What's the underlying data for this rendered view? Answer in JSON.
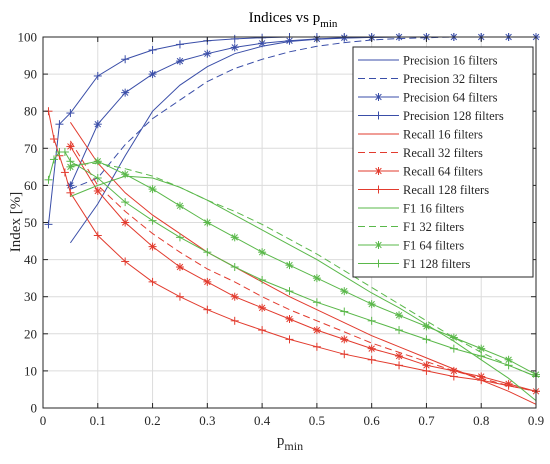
{
  "chart_data": {
    "type": "line",
    "title": "Indices vs p",
    "title_subscript": "min",
    "xlabel": "p",
    "xlabel_subscript": "min",
    "ylabel": "Index [%]",
    "xlim": [
      0,
      0.9
    ],
    "ylim": [
      0,
      100
    ],
    "xticks": [
      "0",
      "0.1",
      "0.2",
      "0.3",
      "0.4",
      "0.5",
      "0.6",
      "0.7",
      "0.8",
      "0.9"
    ],
    "yticks": [
      "0",
      "10",
      "20",
      "30",
      "40",
      "50",
      "60",
      "70",
      "80",
      "90",
      "100"
    ],
    "grid": true,
    "legend_position": "top-right",
    "colors": {
      "precision": "#3a4ea8",
      "recall": "#e23b2e",
      "f1": "#5ab84a"
    },
    "series": [
      {
        "name": "Precision 16 filters",
        "group": "precision",
        "style": "solid",
        "marker": "none",
        "x": [
          0.05,
          0.1,
          0.15,
          0.2,
          0.25,
          0.3,
          0.35,
          0.4,
          0.45,
          0.5,
          0.55,
          0.6,
          0.65,
          0.7,
          0.75,
          0.8,
          0.85,
          0.9
        ],
        "y": [
          44.5,
          55,
          68,
          80,
          87,
          92,
          95.5,
          97.5,
          98.8,
          99.4,
          99.7,
          99.9,
          100,
          100,
          100,
          100,
          100,
          100
        ]
      },
      {
        "name": "Precision 32 filters",
        "group": "precision",
        "style": "dashed",
        "marker": "none",
        "x": [
          0.05,
          0.1,
          0.15,
          0.2,
          0.25,
          0.3,
          0.35,
          0.4,
          0.45,
          0.5,
          0.55,
          0.6,
          0.65,
          0.7,
          0.75,
          0.8,
          0.85,
          0.9
        ],
        "y": [
          59,
          62,
          71,
          78,
          83,
          88,
          91.5,
          94,
          96,
          97.5,
          98.5,
          99.2,
          99.6,
          99.8,
          100,
          100,
          100,
          100
        ]
      },
      {
        "name": "Precision 64 filters",
        "group": "precision",
        "style": "solid",
        "marker": "asterisk",
        "x": [
          0.05,
          0.1,
          0.15,
          0.2,
          0.25,
          0.3,
          0.35,
          0.4,
          0.45,
          0.5,
          0.55,
          0.6,
          0.65,
          0.7,
          0.75,
          0.8,
          0.85,
          0.9
        ],
        "y": [
          60,
          76.5,
          85,
          90,
          93.5,
          95.5,
          97.2,
          98.3,
          99,
          99.5,
          99.8,
          99.9,
          100,
          100,
          100,
          100,
          100,
          100
        ]
      },
      {
        "name": "Precision 128 filters",
        "group": "precision",
        "style": "solid",
        "marker": "plus",
        "x": [
          0.01,
          0.03,
          0.05,
          0.1,
          0.15,
          0.2,
          0.25,
          0.3,
          0.35,
          0.4,
          0.45,
          0.5,
          0.55,
          0.6,
          0.65,
          0.7,
          0.75,
          0.8,
          0.85,
          0.9
        ],
        "y": [
          49.5,
          76.5,
          79.5,
          89.5,
          94,
          96.5,
          98,
          99,
          99.5,
          99.8,
          100,
          100,
          100,
          100,
          100,
          100,
          100,
          100,
          100,
          100
        ]
      },
      {
        "name": "Recall 16 filters",
        "group": "recall",
        "style": "solid",
        "marker": "none",
        "x": [
          0.05,
          0.1,
          0.15,
          0.2,
          0.25,
          0.3,
          0.35,
          0.4,
          0.45,
          0.5,
          0.55,
          0.6,
          0.65,
          0.7,
          0.75,
          0.8,
          0.85,
          0.9
        ],
        "y": [
          77,
          66,
          58,
          52,
          47,
          42,
          38,
          34,
          30,
          26.5,
          23,
          19.5,
          16.5,
          13.5,
          10.5,
          7.5,
          4.5,
          1
        ]
      },
      {
        "name": "Recall 32 filters",
        "group": "recall",
        "style": "dashed",
        "marker": "none",
        "x": [
          0.05,
          0.1,
          0.15,
          0.2,
          0.25,
          0.3,
          0.35,
          0.4,
          0.45,
          0.5,
          0.55,
          0.6,
          0.65,
          0.7,
          0.75,
          0.8,
          0.85,
          0.9
        ],
        "y": [
          72,
          60,
          53,
          47,
          42,
          37.5,
          34,
          30,
          26.5,
          23.5,
          20.5,
          17.5,
          15,
          12.5,
          10,
          8,
          6,
          4.5
        ]
      },
      {
        "name": "Recall 64 filters",
        "group": "recall",
        "style": "solid",
        "marker": "asterisk",
        "x": [
          0.05,
          0.1,
          0.15,
          0.2,
          0.25,
          0.3,
          0.35,
          0.4,
          0.45,
          0.5,
          0.55,
          0.6,
          0.65,
          0.7,
          0.75,
          0.8,
          0.85,
          0.9
        ],
        "y": [
          70.5,
          58.5,
          50,
          43.5,
          38,
          34,
          30,
          27,
          24,
          21,
          18.5,
          16,
          14,
          11.5,
          10,
          8.5,
          6.5,
          4.5
        ]
      },
      {
        "name": "Recall 128 filters",
        "group": "recall",
        "style": "solid",
        "marker": "plus",
        "x": [
          0.01,
          0.02,
          0.03,
          0.04,
          0.05,
          0.1,
          0.15,
          0.2,
          0.25,
          0.3,
          0.35,
          0.4,
          0.45,
          0.5,
          0.55,
          0.6,
          0.65,
          0.7,
          0.75,
          0.8,
          0.85,
          0.9
        ],
        "y": [
          80,
          72.5,
          68,
          63.5,
          58,
          46.5,
          39.5,
          34,
          30,
          26.5,
          23.5,
          21,
          18.5,
          16.5,
          14.5,
          13,
          11.5,
          10,
          8.5,
          7.5,
          6,
          4.5
        ]
      },
      {
        "name": "F1 16 filters",
        "group": "f1",
        "style": "solid",
        "marker": "none",
        "x": [
          0.05,
          0.1,
          0.15,
          0.2,
          0.25,
          0.3,
          0.35,
          0.4,
          0.45,
          0.5,
          0.55,
          0.6,
          0.65,
          0.7,
          0.75,
          0.8,
          0.85,
          0.9
        ],
        "y": [
          57,
          60,
          62.5,
          62,
          59.5,
          56,
          52,
          48,
          44,
          40,
          35.5,
          31,
          27,
          22.5,
          18,
          13,
          8,
          2
        ]
      },
      {
        "name": "F1 32 filters",
        "group": "f1",
        "style": "dashed",
        "marker": "none",
        "x": [
          0.05,
          0.1,
          0.15,
          0.2,
          0.25,
          0.3,
          0.35,
          0.4,
          0.45,
          0.5,
          0.55,
          0.6,
          0.65,
          0.7,
          0.75,
          0.8,
          0.85,
          0.9
        ],
        "y": [
          65.5,
          66,
          64.5,
          62.5,
          59.5,
          56,
          53,
          49.5,
          45.5,
          41.5,
          37,
          32.5,
          28,
          23.5,
          19,
          15,
          11.5,
          8.5
        ]
      },
      {
        "name": "F1 64 filters",
        "group": "f1",
        "style": "solid",
        "marker": "asterisk",
        "x": [
          0.05,
          0.1,
          0.15,
          0.2,
          0.25,
          0.3,
          0.35,
          0.4,
          0.45,
          0.5,
          0.55,
          0.6,
          0.65,
          0.7,
          0.75,
          0.8,
          0.85,
          0.9
        ],
        "y": [
          65,
          66.5,
          63,
          59,
          54.5,
          50,
          46,
          42,
          38.5,
          35,
          31.5,
          28,
          25,
          22,
          19,
          16,
          13,
          9
        ]
      },
      {
        "name": "F1 128 filters",
        "group": "f1",
        "style": "solid",
        "marker": "plus",
        "x": [
          0.01,
          0.02,
          0.03,
          0.04,
          0.05,
          0.1,
          0.15,
          0.2,
          0.25,
          0.3,
          0.35,
          0.4,
          0.45,
          0.5,
          0.55,
          0.6,
          0.65,
          0.7,
          0.75,
          0.8,
          0.85,
          0.9
        ],
        "y": [
          61.5,
          67,
          69,
          69,
          66.5,
          62,
          55.5,
          50.5,
          46,
          42,
          38,
          34.5,
          31.5,
          28.5,
          26,
          23.5,
          21,
          18.5,
          16,
          14,
          11.5,
          8.5
        ]
      }
    ]
  }
}
